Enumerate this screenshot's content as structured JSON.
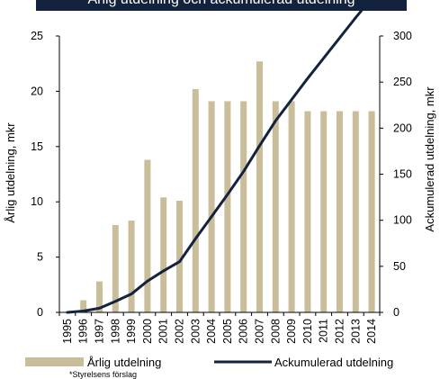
{
  "banner": {
    "title": "Årlig utdelning och ackumulerad utdelning"
  },
  "footnote": "*Styrelsens förslag",
  "colors": {
    "bars": "#c9bd9a",
    "line": "#14233d",
    "banner": "#14233d"
  },
  "chart_data": {
    "type": "bar+line",
    "categories": [
      "1995",
      "1996",
      "1997",
      "1998",
      "1999",
      "2000",
      "2001",
      "2002",
      "2003",
      "2004",
      "2005",
      "2006",
      "2007",
      "2008",
      "2009",
      "2010",
      "2011",
      "2012",
      "2013",
      "2014"
    ],
    "series": [
      {
        "name": "Årlig utdelning",
        "type": "bar",
        "axis": "left",
        "values": [
          0,
          1.1,
          2.8,
          7.9,
          8.3,
          13.8,
          10.4,
          10.1,
          20.2,
          19.1,
          19.1,
          19.1,
          22.7,
          19.1,
          19.1,
          18.2,
          18.2,
          18.2,
          18.2,
          18.2
        ]
      },
      {
        "name": "Ackumulerad utdelning",
        "type": "line",
        "axis": "right",
        "values": [
          0,
          1.5,
          4.5,
          12,
          20,
          34,
          45,
          55,
          80,
          104,
          128,
          153,
          181,
          208,
          231,
          254,
          276,
          298,
          320,
          341
        ]
      }
    ],
    "ylabel_left": "Årlig utdelning, mkr",
    "ylabel_right": "Ackumulerad utdelning, mkr",
    "ylim_left": [
      0,
      25
    ],
    "ylim_right": [
      0,
      300
    ],
    "yticks_left": [
      "0",
      "5",
      "10",
      "15",
      "20",
      "25"
    ],
    "yticks_right": [
      "0",
      "50",
      "100",
      "150",
      "200",
      "250",
      "300"
    ],
    "grid": false,
    "legend_placement": "bottom"
  }
}
